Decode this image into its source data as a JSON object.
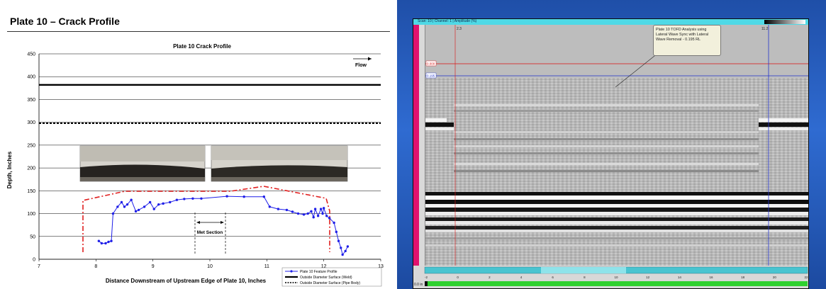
{
  "left": {
    "heading": "Plate 10 – Crack Profile"
  },
  "chart_data": {
    "type": "line",
    "title": "Plate 10 Crack Profile",
    "xlabel": "Distance Downstream of Upstream Edge of Plate 10, Inches",
    "ylabel": "Depth, Inches",
    "xlim": [
      7,
      13
    ],
    "ylim": [
      0,
      450
    ],
    "xticks": [
      "7",
      "8",
      "9",
      "10",
      "11",
      "12",
      "13"
    ],
    "yticks": [
      "0",
      "50",
      "100",
      "150",
      "200",
      "250",
      "300",
      "350",
      "400",
      "450"
    ],
    "grid": true,
    "legend_position": "bottom-right",
    "series": [
      {
        "name": "Plate 10 Feature Profile",
        "color": "#1f1fe8",
        "points": [
          [
            8.05,
            40
          ],
          [
            8.1,
            35
          ],
          [
            8.17,
            35
          ],
          [
            8.22,
            38
          ],
          [
            8.27,
            40
          ],
          [
            8.3,
            100
          ],
          [
            8.38,
            115
          ],
          [
            8.45,
            125
          ],
          [
            8.5,
            115
          ],
          [
            8.55,
            120
          ],
          [
            8.62,
            130
          ],
          [
            8.7,
            105
          ],
          [
            8.75,
            108
          ],
          [
            8.85,
            115
          ],
          [
            8.95,
            125
          ],
          [
            9.02,
            110
          ],
          [
            9.1,
            120
          ],
          [
            9.18,
            122
          ],
          [
            9.3,
            125
          ],
          [
            9.42,
            130
          ],
          [
            9.55,
            132
          ],
          [
            9.7,
            133
          ],
          [
            9.85,
            133
          ],
          [
            10.3,
            138
          ],
          [
            10.6,
            137
          ],
          [
            10.95,
            137
          ],
          [
            11.05,
            115
          ],
          [
            11.2,
            110
          ],
          [
            11.35,
            108
          ],
          [
            11.45,
            104
          ],
          [
            11.55,
            100
          ],
          [
            11.65,
            98
          ],
          [
            11.72,
            100
          ],
          [
            11.78,
            105
          ],
          [
            11.82,
            92
          ],
          [
            11.85,
            110
          ],
          [
            11.9,
            95
          ],
          [
            11.95,
            110
          ],
          [
            11.98,
            100
          ],
          [
            12.0,
            112
          ],
          [
            12.05,
            95
          ],
          [
            12.1,
            90
          ],
          [
            12.18,
            80
          ],
          [
            12.22,
            60
          ],
          [
            12.26,
            40
          ],
          [
            12.3,
            25
          ],
          [
            12.33,
            10
          ],
          [
            12.38,
            18
          ],
          [
            12.42,
            28
          ]
        ]
      },
      {
        "name": "Outside Diameter Surface (Weld)",
        "color": "#000000",
        "y": 382
      },
      {
        "name": "Outside Diameter Surface (Pipe Body)",
        "color": "#000000",
        "y": 298
      }
    ],
    "annotations": [
      "Flow",
      "Met Section"
    ]
  },
  "right": {
    "window_title": "Scan: 10 | Channel: 1 | Amplitude (%)",
    "callout": "Plate 10 TOFD Analysis using Lateral Wave Sync with Lateral Wave Removal - 0.195 RL",
    "cursor_label_1": "0.000",
    "cursor_label_2": "0.195",
    "top_marker_1": "2.3",
    "top_marker_2": "11.2",
    "axis_ticks": [
      "-2",
      "0",
      "2",
      "4",
      "6",
      "8",
      "10",
      "12",
      "14",
      "16",
      "18",
      "20",
      "22"
    ],
    "left_readout": "0.0 in"
  }
}
